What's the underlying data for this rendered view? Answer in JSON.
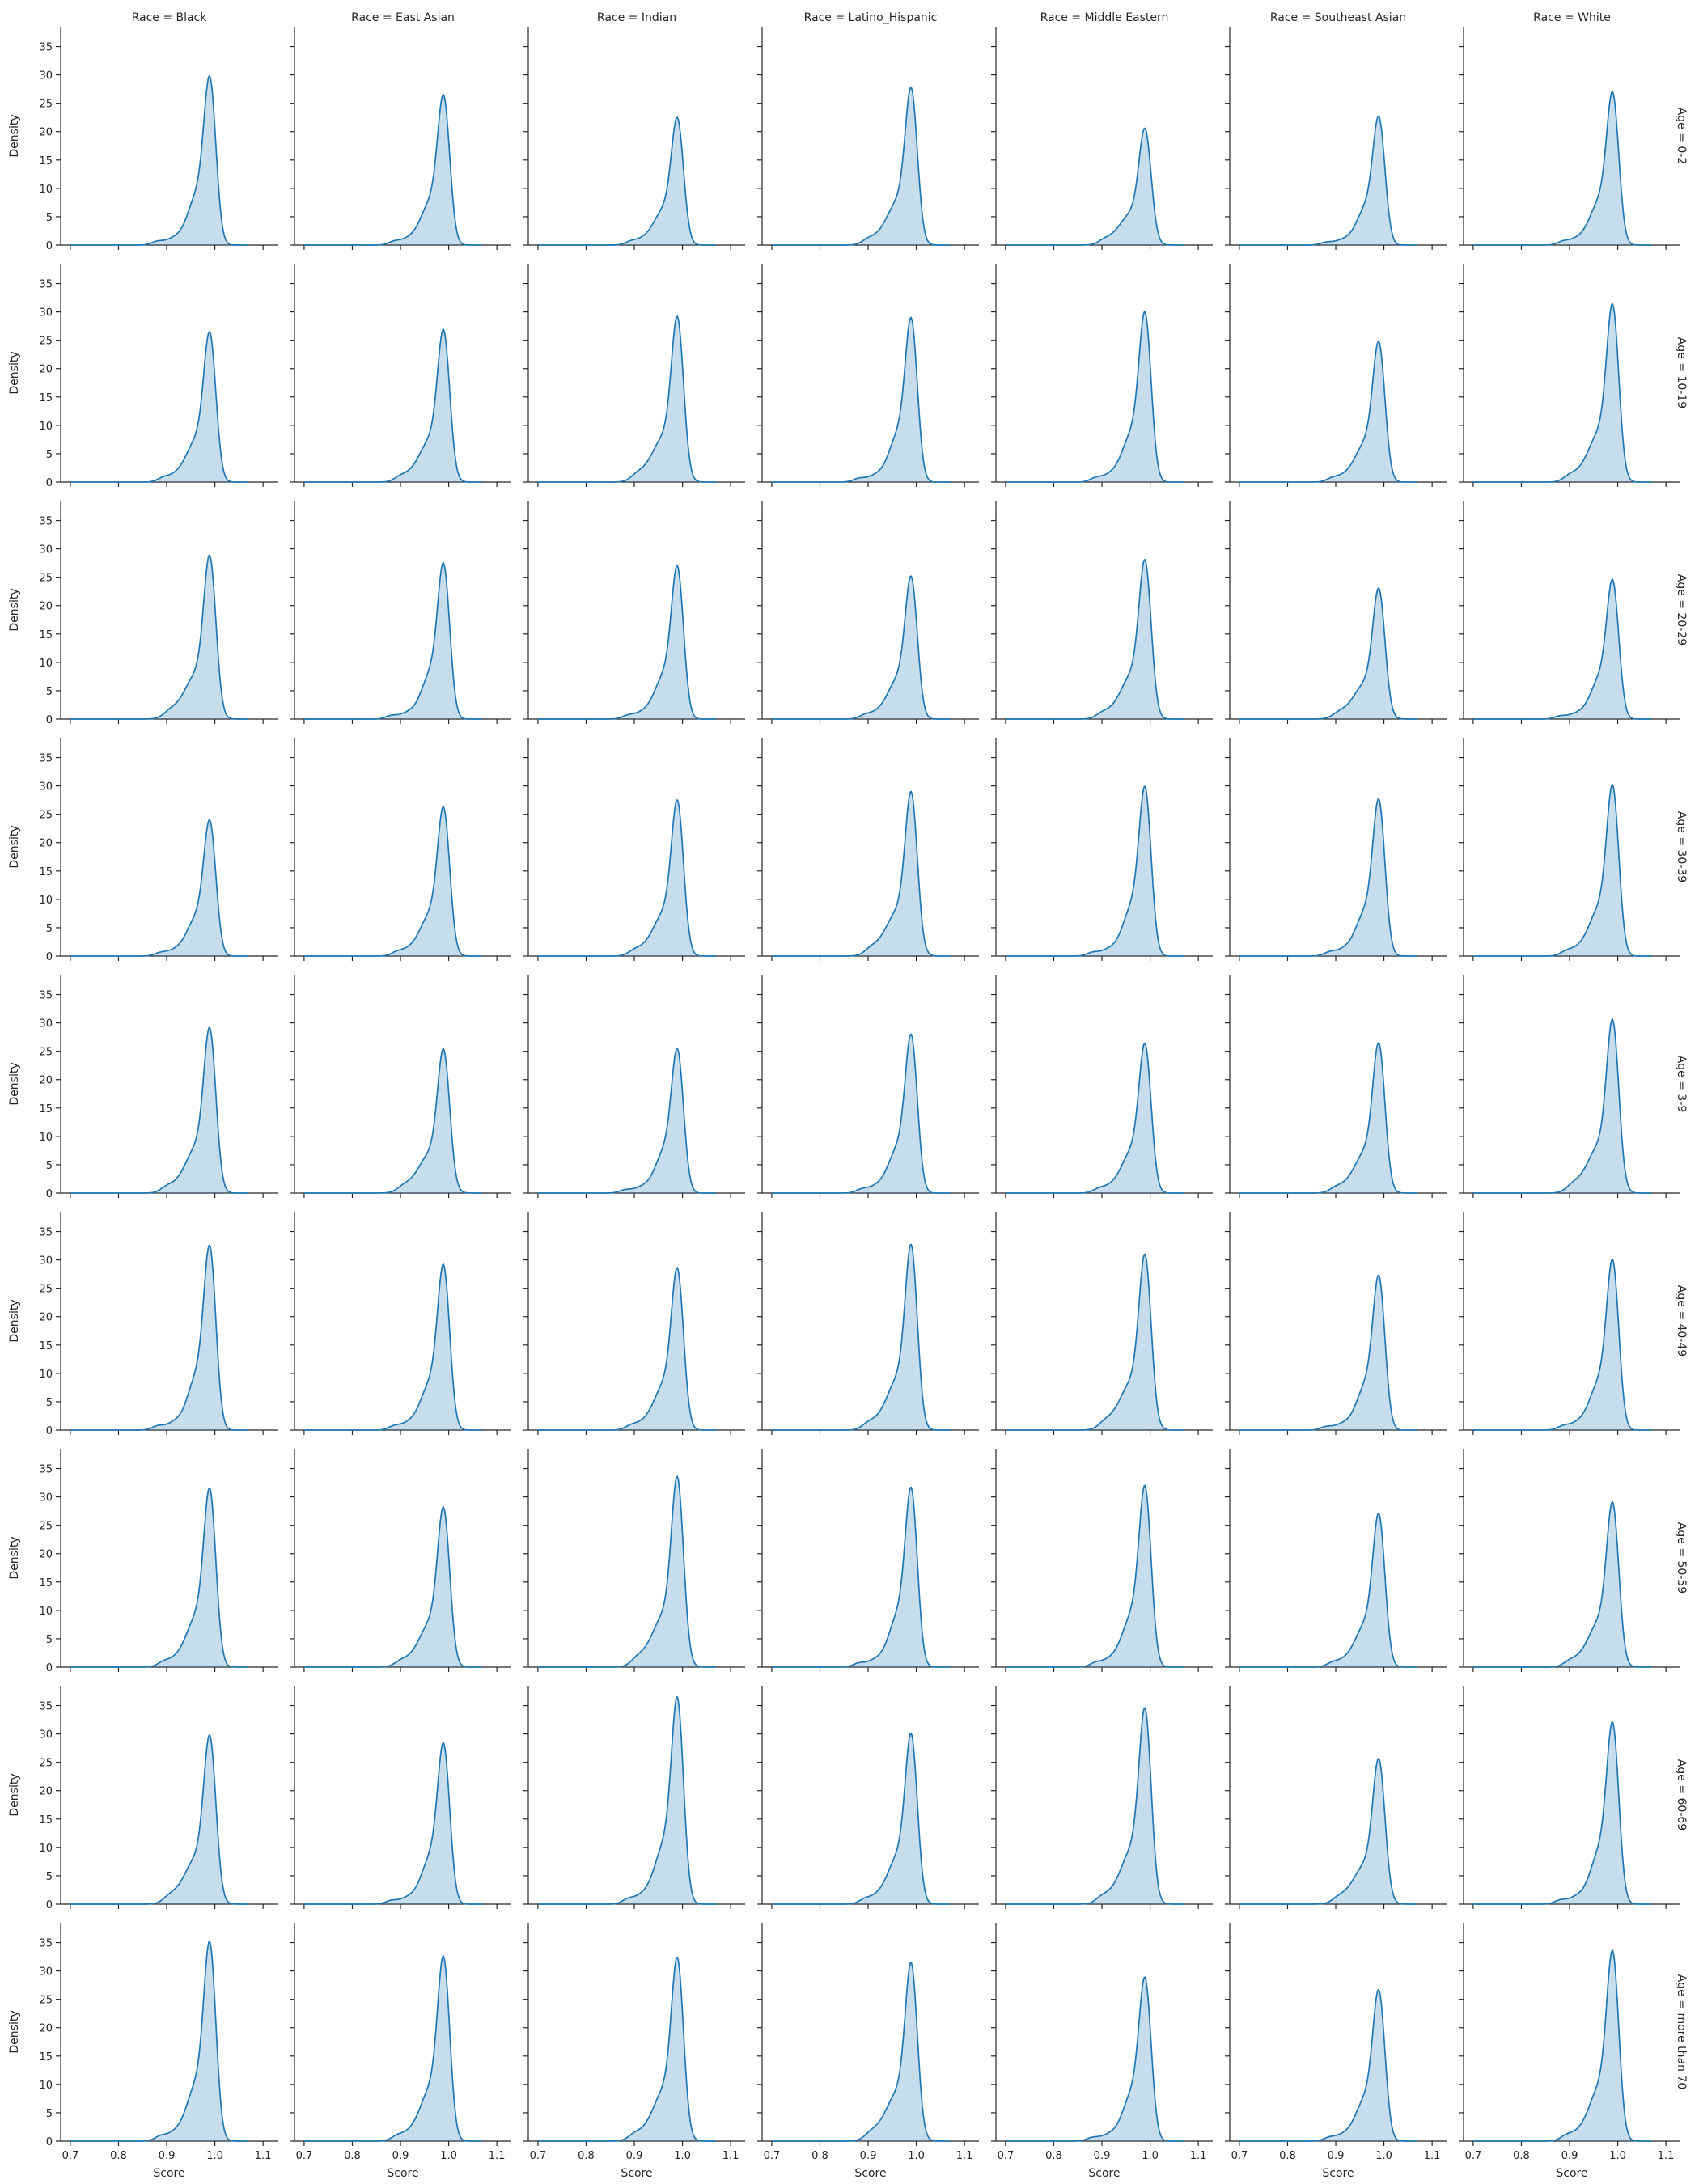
{
  "chart_data": {
    "type": "area",
    "kind": "kde facet grid",
    "col_titles": [
      "Race = Black",
      "Race = East Asian",
      "Race = Indian",
      "Race = Latino_Hispanic",
      "Race = Middle Eastern",
      "Race = Southeast Asian",
      "Race = White"
    ],
    "row_titles": [
      "Age = 0-2",
      "Age = 10-19",
      "Age = 20-29",
      "Age = 30-39",
      "Age = 3-9",
      "Age = 40-49",
      "Age = 50-59",
      "Age = 60-69",
      "Age = more than 70"
    ],
    "xlabel": "Score",
    "ylabel": "Density",
    "xlim": [
      0.68,
      1.13
    ],
    "ylim": [
      0,
      38.5
    ],
    "xticks": [
      "0.7",
      "0.8",
      "0.9",
      "1.0",
      "1.1"
    ],
    "yticks": [
      "0",
      "5",
      "10",
      "15",
      "20",
      "25",
      "30",
      "35"
    ],
    "grid": false,
    "color": "#1f77b4",
    "peaks": [
      [
        29.8,
        26.5,
        22.5,
        27.8,
        20.6,
        22.7,
        27.0
      ],
      [
        26.5,
        26.9,
        29.2,
        29.0,
        30.0,
        24.8,
        31.4
      ],
      [
        28.9,
        27.5,
        27.0,
        25.2,
        28.1,
        23.1,
        24.6
      ],
      [
        24.0,
        26.3,
        27.5,
        29.0,
        29.9,
        27.7,
        30.2
      ],
      [
        29.2,
        25.4,
        25.5,
        28.0,
        26.4,
        26.5,
        30.6
      ],
      [
        32.6,
        29.2,
        28.6,
        32.7,
        31.0,
        27.3,
        30.1
      ],
      [
        31.6,
        28.2,
        33.6,
        31.7,
        32.0,
        27.1,
        29.1
      ],
      [
        29.8,
        28.4,
        36.5,
        30.1,
        34.6,
        25.7,
        32.1
      ],
      [
        35.2,
        32.6,
        32.4,
        31.5,
        28.9,
        26.7,
        33.6
      ]
    ]
  }
}
